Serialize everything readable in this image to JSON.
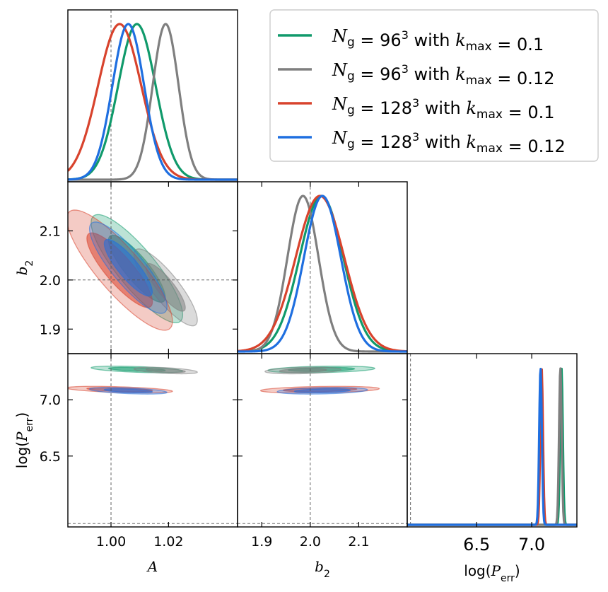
{
  "chart_data": {
    "type": "corner",
    "parameters": [
      {
        "symbol": "A",
        "sub": "",
        "truth": 1.0,
        "range": [
          0.985,
          1.044
        ],
        "ticks": [
          {
            "v": 1.0,
            "label": "1.00"
          },
          {
            "v": 1.02,
            "label": "1.02"
          }
        ]
      },
      {
        "symbol": "b",
        "sub": "2",
        "truth": 2.0,
        "range": [
          1.85,
          2.2
        ],
        "ticks": [
          {
            "v": 1.9,
            "label": "1.9"
          },
          {
            "v": 2.0,
            "label": "2.0"
          },
          {
            "v": 2.1,
            "label": "2.1"
          }
        ]
      },
      {
        "symbol": "P",
        "sub": "err",
        "wrap": "log",
        "truth": 5.9,
        "range": [
          5.87,
          7.41
        ],
        "ticks": [
          {
            "v": 6.5,
            "label": "6.5"
          },
          {
            "v": 7.0,
            "label": "7.0"
          }
        ]
      }
    ],
    "series": [
      {
        "name": "N_g = 96^3 with k_max = 0.1",
        "color": "#109a6b",
        "mean": [
          1.009,
          2.023,
          7.27
        ],
        "sigma": [
          0.0065,
          0.045,
          0.012
        ],
        "corr": {
          "0_1": -0.85,
          "0_2": -0.5,
          "1_2": 0.3
        }
      },
      {
        "name": "N_g = 96^3 with k_max = 0.12",
        "color": "#7f7f7f",
        "mean": [
          1.019,
          1.985,
          7.26
        ],
        "sigma": [
          0.0045,
          0.032,
          0.012
        ],
        "corr": {
          "0_1": -0.85,
          "0_2": -0.5,
          "1_2": 0.3
        }
      },
      {
        "name": "N_g = 128^3 with k_max = 0.1",
        "color": "#d8432d",
        "mean": [
          1.003,
          2.02,
          7.09
        ],
        "sigma": [
          0.0075,
          0.05,
          0.012
        ],
        "corr": {
          "0_1": -0.85,
          "0_2": -0.5,
          "1_2": 0.3
        }
      },
      {
        "name": "N_g = 128^3 with k_max = 0.12",
        "color": "#1f6fe0",
        "mean": [
          1.006,
          2.025,
          7.08
        ],
        "sigma": [
          0.0055,
          0.038,
          0.012
        ],
        "corr": {
          "0_1": -0.85,
          "0_2": -0.5,
          "1_2": 0.3
        }
      }
    ],
    "legend": {
      "placement": "top-right",
      "entries": [
        {
          "Ng": "96",
          "kmax": "0.1",
          "color": "#109a6b"
        },
        {
          "Ng": "96",
          "kmax": "0.12",
          "color": "#7f7f7f"
        },
        {
          "Ng": "128",
          "kmax": "0.1",
          "color": "#d8432d"
        },
        {
          "Ng": "128",
          "kmax": "0.12",
          "color": "#1f6fe0"
        }
      ],
      "with_word": "with"
    },
    "grid": false
  }
}
